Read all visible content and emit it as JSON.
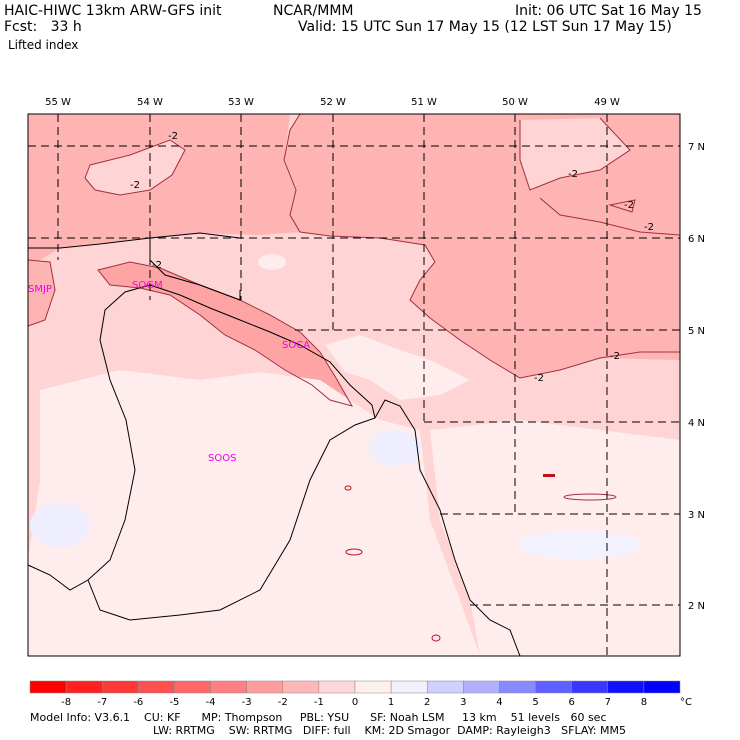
{
  "header": {
    "title": "HAIC-HIWC 13km ARW-GFS init",
    "center": "NCAR/MMM",
    "init": "Init: 06 UTC Sat 16 May 15",
    "fcst": "Fcst:   33 h",
    "valid": "Valid: 15 UTC Sun 17 May 15 (12 LST Sun 17 May 15)",
    "field": "Lifted index"
  },
  "map": {
    "lon_labels": [
      "55 W",
      "54 W",
      "53 W",
      "52 W",
      "51 W",
      "50 W",
      "49 W"
    ],
    "lat_labels": [
      "7 N",
      "6 N",
      "5 N",
      "4 N",
      "3 N",
      "2 N"
    ],
    "contour_labels": [
      "-2",
      "-2",
      "-2",
      "-2",
      "-2",
      "-2",
      "-2",
      "-2"
    ],
    "stations": [
      "SMJP",
      "SOCA",
      "SOOS",
      "SOGM"
    ]
  },
  "colorbar": {
    "labels": [
      "-8",
      "-7",
      "-6",
      "-5",
      "-4",
      "-3",
      "-2",
      "-1",
      "0",
      "1",
      "2",
      "3",
      "4",
      "5",
      "6",
      "7",
      "8"
    ],
    "unit": "°C",
    "colors": [
      "#ff0000",
      "#ff2020",
      "#ff3838",
      "#ff5050",
      "#ff6868",
      "#ff8080",
      "#ff9c9c",
      "#ffb8b8",
      "#ffd8d8",
      "#fff0f0",
      "#f0f0ff",
      "#d0d0ff",
      "#b0b0ff",
      "#8888ff",
      "#6060ff",
      "#3838ff",
      "#1010ff",
      "#0000ff"
    ]
  },
  "footer": {
    "line1": "Model Info: V3.6.1    CU: KF      MP: Thompson     PBL: YSU      SF: Noah LSM     13 km    51 levels   60 sec",
    "line2": "LW: RRTMG    SW: RRTMG   DIFF: full    KM: 2D Smagor  DAMP: Rayleigh3   SFLAY: MM5"
  }
}
